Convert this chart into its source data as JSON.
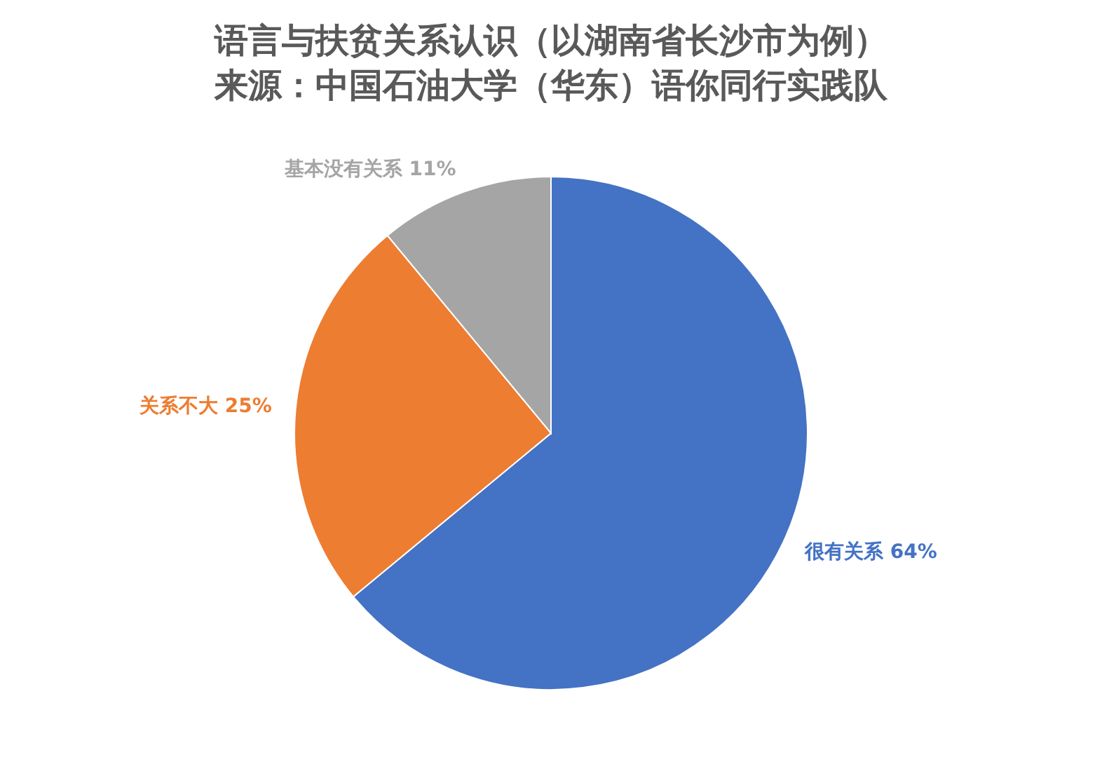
{
  "chart_data": {
    "type": "pie",
    "title": "语言与扶贫关系认识（以湖南省长沙市为例）",
    "subtitle": "来源：中国石油大学（华东）语你同行实践队",
    "categories": [
      "很有关系",
      "关系不大",
      "基本没有关系"
    ],
    "values": [
      64,
      25,
      11
    ],
    "value_labels": [
      "64%",
      "25%",
      "11%"
    ],
    "colors": [
      "#4472c4",
      "#ed7d31",
      "#a5a5a5"
    ],
    "legend": false
  }
}
